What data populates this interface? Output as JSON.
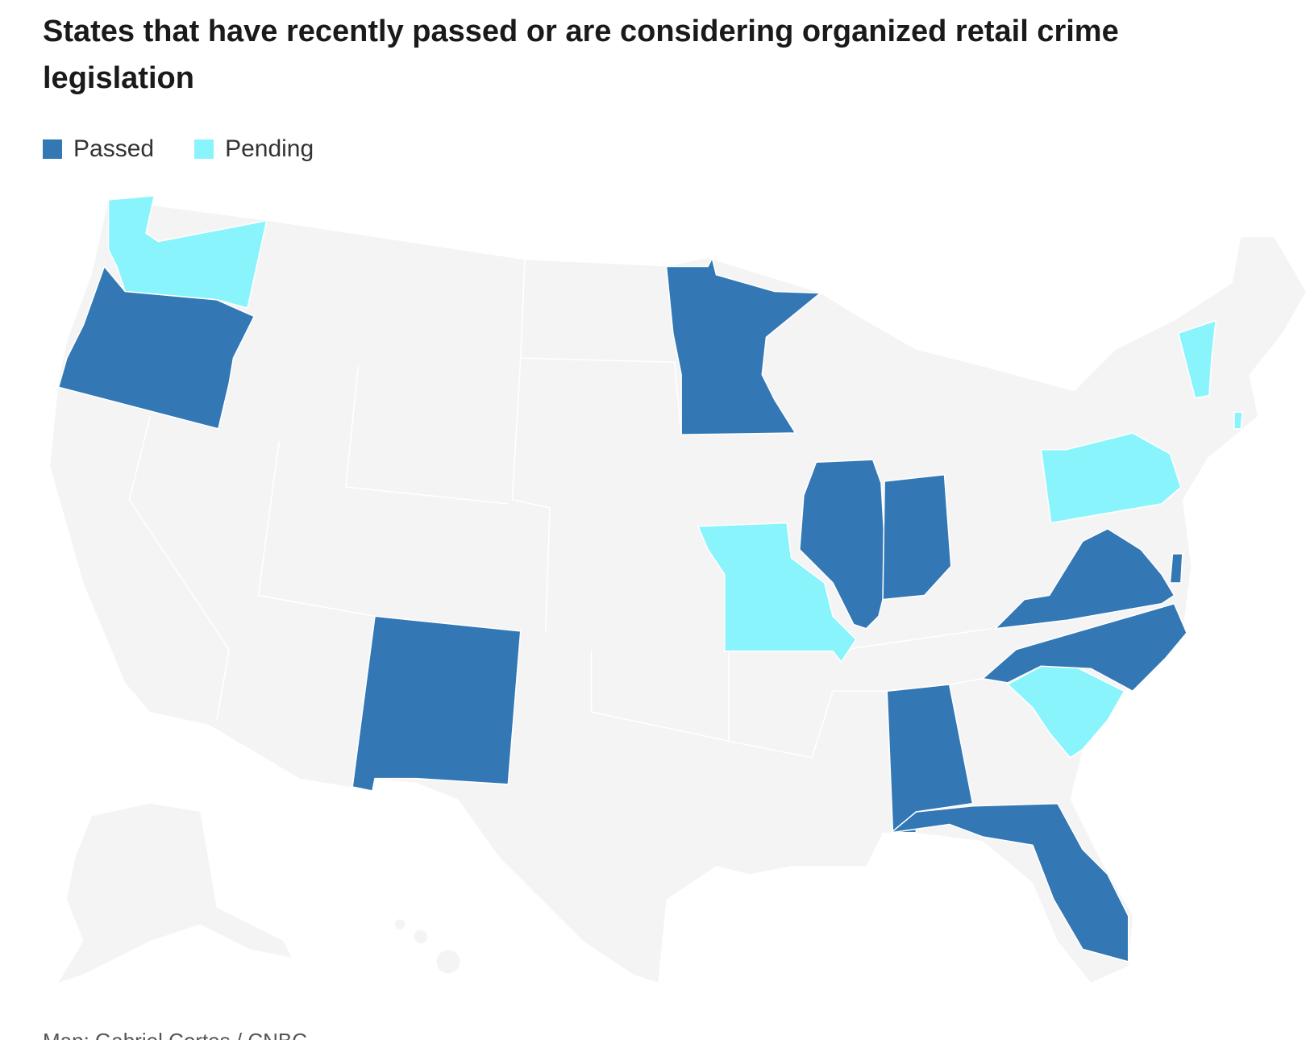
{
  "header": {
    "title": "States that have recently passed or are considering organized retail crime legislation"
  },
  "legend": [
    {
      "label": "Passed",
      "color": "#3378b5"
    },
    {
      "label": "Pending",
      "color": "#8af4fd"
    }
  ],
  "land_color": "#f4f4f4",
  "source": "Map: Gabriel Cortes / CNBC"
}
